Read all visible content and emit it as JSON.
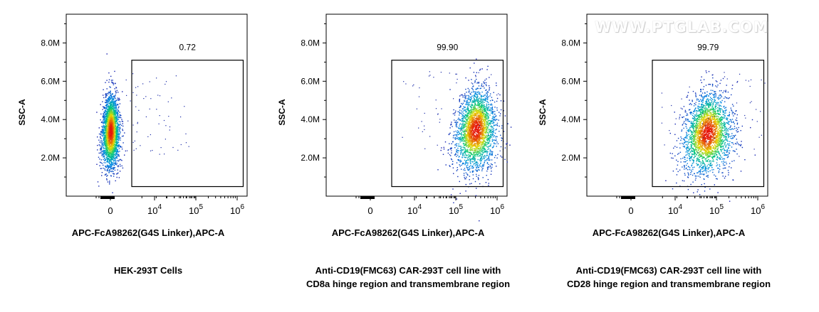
{
  "watermark": "WWW.PTGLAB.COM",
  "chart_data": [
    {
      "type": "scatter",
      "xlabel": "APC-FcA98262(G4S Linker),APC-A",
      "ylabel": "SSC-A",
      "xscale": "biexponential",
      "x_ticks": [
        {
          "value": 0,
          "label": "0"
        },
        {
          "value": 10000,
          "label": "10^4"
        },
        {
          "value": 100000,
          "label": "10^5"
        },
        {
          "value": 1000000,
          "label": "10^6"
        }
      ],
      "y_ticks": [
        {
          "value": 2000000,
          "label": "2.0M"
        },
        {
          "value": 4000000,
          "label": "4.0M"
        },
        {
          "value": 6000000,
          "label": "6.0M"
        },
        {
          "value": 8000000,
          "label": "8.0M"
        }
      ],
      "ylim": [
        0,
        9500000
      ],
      "gate": {
        "x_range": [
          1500,
          1400000
        ],
        "y_range": [
          500000,
          7100000
        ],
        "percent": "0.72"
      },
      "population": {
        "center_x": 0,
        "center_y": 3400000
      },
      "caption": [
        "HEK-293T Cells"
      ]
    },
    {
      "type": "scatter",
      "xlabel": "APC-FcA98262(G4S Linker),APC-A",
      "ylabel": "SSC-A",
      "xscale": "biexponential",
      "x_ticks": [
        {
          "value": 0,
          "label": "0"
        },
        {
          "value": 10000,
          "label": "10^4"
        },
        {
          "value": 100000,
          "label": "10^5"
        },
        {
          "value": 1000000,
          "label": "10^6"
        }
      ],
      "y_ticks": [
        {
          "value": 2000000,
          "label": "2.0M"
        },
        {
          "value": 4000000,
          "label": "4.0M"
        },
        {
          "value": 6000000,
          "label": "6.0M"
        },
        {
          "value": 8000000,
          "label": "8.0M"
        }
      ],
      "ylim": [
        0,
        9500000
      ],
      "gate": {
        "x_range": [
          1500,
          1400000
        ],
        "y_range": [
          500000,
          7100000
        ],
        "percent": "99.90"
      },
      "population": {
        "center_x": 300000,
        "center_y": 3500000
      },
      "caption": [
        "Anti-CD19(FMC63) CAR-293T cell line with",
        "CD8a hinge region and transmembrane region"
      ]
    },
    {
      "type": "scatter",
      "xlabel": "APC-FcA98262(G4S Linker),APC-A",
      "ylabel": "SSC-A",
      "xscale": "biexponential",
      "x_ticks": [
        {
          "value": 0,
          "label": "0"
        },
        {
          "value": 10000,
          "label": "10^4"
        },
        {
          "value": 100000,
          "label": "10^5"
        },
        {
          "value": 1000000,
          "label": "10^6"
        }
      ],
      "y_ticks": [
        {
          "value": 2000000,
          "label": "2.0M"
        },
        {
          "value": 4000000,
          "label": "4.0M"
        },
        {
          "value": 6000000,
          "label": "6.0M"
        },
        {
          "value": 8000000,
          "label": "8.0M"
        }
      ],
      "ylim": [
        0,
        9500000
      ],
      "gate": {
        "x_range": [
          1500,
          1400000
        ],
        "y_range": [
          500000,
          7100000
        ],
        "percent": "99.79"
      },
      "population": {
        "center_x": 60000,
        "center_y": 3300000
      },
      "caption": [
        "Anti-CD19(FMC63) CAR-293T cell line with",
        "CD28 hinge region and transmembrane region"
      ]
    }
  ]
}
